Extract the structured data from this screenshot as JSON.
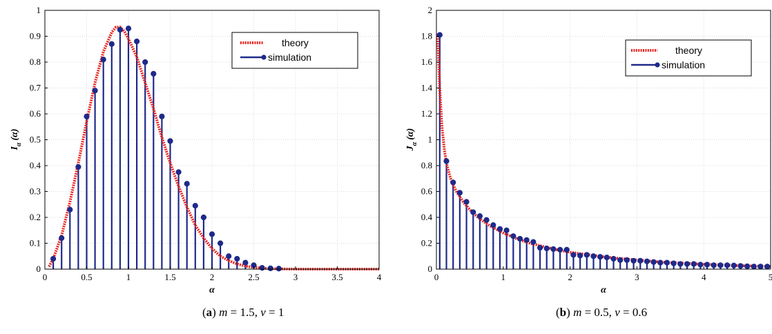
{
  "colors": {
    "theory": "#e8241e",
    "simulation": "#1e2a8a",
    "grid": "#d9d9d9"
  },
  "captions": [
    {
      "open": "(",
      "letter": "a",
      "mid": ") ",
      "p1": "m",
      "v1": " = 1.5, ",
      "p2": "ν",
      "v2": " = 1"
    },
    {
      "open": "(",
      "letter": "b",
      "mid": ") ",
      "p1": "m",
      "v1": " = 0.5, ",
      "p2": "ν",
      "v2": " = 0.6"
    }
  ],
  "chart_data": [
    {
      "type": "line",
      "xlabel": "α",
      "ylabel": "I_α(α)",
      "ylabel_main": "I",
      "ylabel_sub": "α",
      "ylabel_arg": "(α)",
      "xlim": [
        0,
        4
      ],
      "ylim": [
        0,
        1
      ],
      "xticks": [
        "0",
        "0.5",
        "1",
        "1.5",
        "2",
        "2.5",
        "3",
        "3.5",
        "4"
      ],
      "xtick_values": [
        0,
        0.5,
        1,
        1.5,
        2,
        2.5,
        3,
        3.5,
        4
      ],
      "yticks": [
        "0",
        "0.1",
        "0.2",
        "0.3",
        "0.4",
        "0.5",
        "0.6",
        "0.7",
        "0.8",
        "0.9",
        "1"
      ],
      "ytick_values": [
        0,
        0.1,
        0.2,
        0.3,
        0.4,
        0.5,
        0.6,
        0.7,
        0.8,
        0.9,
        1
      ],
      "grid": true,
      "legend_position": "top-right",
      "series": [
        {
          "name": "theory",
          "style": "dotted-line",
          "x": [
            0.05,
            0.1,
            0.2,
            0.3,
            0.4,
            0.5,
            0.6,
            0.7,
            0.8,
            0.85,
            0.9,
            0.95,
            1.0,
            1.1,
            1.2,
            1.3,
            1.4,
            1.5,
            1.6,
            1.7,
            1.8,
            1.9,
            2.0,
            2.1,
            2.2,
            2.3,
            2.4,
            2.5,
            2.6,
            2.7,
            2.8,
            3.0,
            3.5,
            4.0
          ],
          "y": [
            0.01,
            0.04,
            0.13,
            0.26,
            0.41,
            0.57,
            0.72,
            0.84,
            0.915,
            0.935,
            0.935,
            0.92,
            0.89,
            0.82,
            0.72,
            0.62,
            0.51,
            0.41,
            0.32,
            0.24,
            0.17,
            0.12,
            0.08,
            0.05,
            0.033,
            0.02,
            0.012,
            0.007,
            0.004,
            0.002,
            0.001,
            0.0,
            0.0,
            0.0
          ]
        },
        {
          "name": "simulation",
          "style": "stem",
          "x": [
            0.1,
            0.2,
            0.3,
            0.4,
            0.5,
            0.6,
            0.7,
            0.8,
            0.9,
            1.0,
            1.1,
            1.2,
            1.3,
            1.4,
            1.5,
            1.6,
            1.7,
            1.8,
            1.9,
            2.0,
            2.1,
            2.2,
            2.3,
            2.4,
            2.5,
            2.6,
            2.7,
            2.8
          ],
          "y": [
            0.04,
            0.12,
            0.23,
            0.395,
            0.59,
            0.69,
            0.81,
            0.87,
            0.925,
            0.93,
            0.88,
            0.8,
            0.755,
            0.59,
            0.495,
            0.375,
            0.33,
            0.245,
            0.2,
            0.135,
            0.1,
            0.05,
            0.04,
            0.025,
            0.015,
            0.005,
            0.003,
            0.002
          ]
        }
      ]
    },
    {
      "type": "line",
      "xlabel": "α",
      "ylabel": "J_α(α)",
      "ylabel_main": "J",
      "ylabel_sub": "α",
      "ylabel_arg": "(α)",
      "xlim": [
        0,
        5
      ],
      "ylim": [
        0,
        2
      ],
      "xticks": [
        "0",
        "1",
        "2",
        "3",
        "4",
        "5"
      ],
      "xtick_values": [
        0,
        1,
        2,
        3,
        4,
        5
      ],
      "yticks": [
        "0",
        "0.2",
        "0.4",
        "0.6",
        "0.8",
        "1",
        "1.2",
        "1.4",
        "1.6",
        "1.8",
        "2"
      ],
      "ytick_values": [
        0,
        0.2,
        0.4,
        0.6,
        0.8,
        1,
        1.2,
        1.4,
        1.6,
        1.8,
        2
      ],
      "grid": true,
      "legend_position": "top-right",
      "series": [
        {
          "name": "theory",
          "style": "dotted-line",
          "x": [
            0.02,
            0.05,
            0.08,
            0.12,
            0.15,
            0.2,
            0.25,
            0.3,
            0.4,
            0.5,
            0.6,
            0.7,
            0.8,
            1.0,
            1.2,
            1.4,
            1.6,
            1.8,
            2.0,
            2.5,
            3.0,
            3.5,
            4.0,
            4.5,
            5.0
          ],
          "y": [
            1.82,
            1.4,
            1.12,
            0.92,
            0.82,
            0.72,
            0.65,
            0.6,
            0.52,
            0.46,
            0.41,
            0.37,
            0.335,
            0.28,
            0.235,
            0.2,
            0.175,
            0.15,
            0.13,
            0.095,
            0.07,
            0.05,
            0.038,
            0.028,
            0.02
          ]
        },
        {
          "name": "simulation",
          "style": "stem",
          "x": [
            0.05,
            0.15,
            0.25,
            0.35,
            0.45,
            0.55,
            0.65,
            0.75,
            0.85,
            0.95,
            1.05,
            1.15,
            1.25,
            1.35,
            1.45,
            1.55,
            1.65,
            1.75,
            1.85,
            1.95,
            2.05,
            2.15,
            2.25,
            2.35,
            2.45,
            2.55,
            2.65,
            2.75,
            2.85,
            2.95,
            3.05,
            3.15,
            3.25,
            3.35,
            3.45,
            3.55,
            3.65,
            3.75,
            3.85,
            3.95,
            4.05,
            4.15,
            4.25,
            4.35,
            4.45,
            4.55,
            4.65,
            4.75,
            4.85,
            4.95
          ],
          "y": [
            1.81,
            0.835,
            0.67,
            0.59,
            0.52,
            0.44,
            0.41,
            0.38,
            0.34,
            0.31,
            0.3,
            0.255,
            0.235,
            0.225,
            0.21,
            0.165,
            0.16,
            0.155,
            0.15,
            0.15,
            0.11,
            0.105,
            0.11,
            0.1,
            0.095,
            0.09,
            0.08,
            0.07,
            0.07,
            0.065,
            0.065,
            0.06,
            0.055,
            0.05,
            0.05,
            0.045,
            0.04,
            0.04,
            0.04,
            0.035,
            0.035,
            0.03,
            0.03,
            0.03,
            0.028,
            0.025,
            0.022,
            0.02,
            0.02,
            0.02
          ]
        }
      ]
    }
  ]
}
